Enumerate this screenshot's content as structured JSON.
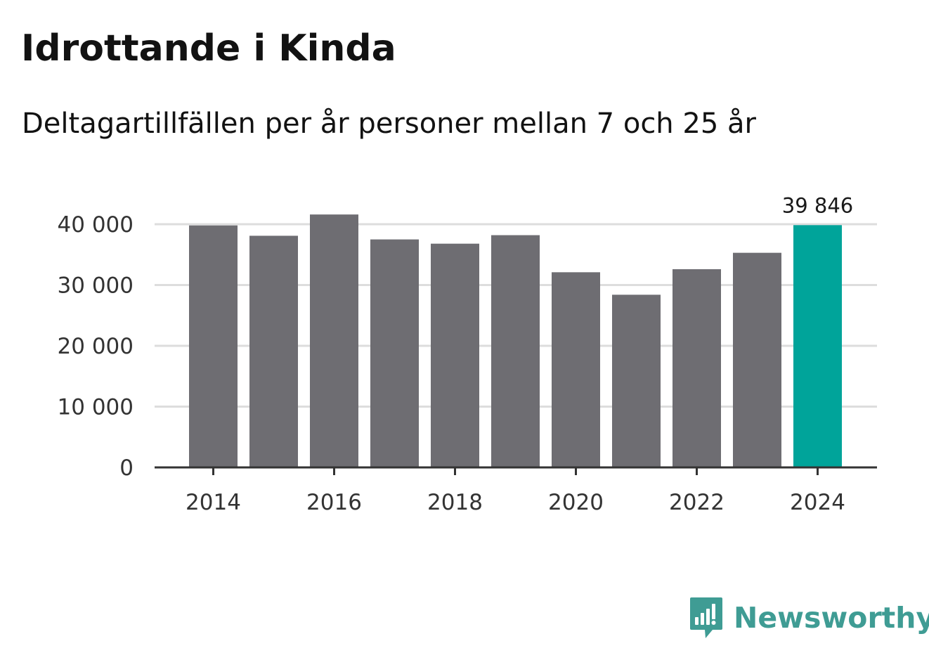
{
  "header": {
    "title": "Idrottande i Kinda",
    "subtitle": "Deltagartillfällen per år personer mellan 7 och 25 år"
  },
  "brand": {
    "name": "Newsworthy",
    "color": "#3f9c94"
  },
  "colors": {
    "bar": "#6e6d72",
    "highlight": "#00a49a",
    "grid": "#dddddd",
    "axis": "#333333"
  },
  "chart_data": {
    "type": "bar",
    "title": "Idrottande i Kinda",
    "subtitle": "Deltagartillfällen per år personer mellan 7 och 25 år",
    "xlabel": "",
    "ylabel": "",
    "categories": [
      "2014",
      "2015",
      "2016",
      "2017",
      "2018",
      "2019",
      "2020",
      "2021",
      "2022",
      "2023",
      "2024"
    ],
    "values": [
      39800,
      38100,
      41600,
      37500,
      36800,
      38200,
      32100,
      28400,
      32600,
      35300,
      39846
    ],
    "highlight_index": 10,
    "annotation": {
      "index": 10,
      "text": "39 846"
    },
    "ylim": [
      0,
      40000
    ],
    "yticks": [
      0,
      10000,
      20000,
      30000,
      40000
    ],
    "ytick_labels": [
      "0",
      "10 000",
      "20 000",
      "30 000",
      "40 000"
    ],
    "xtick_labels": [
      "2014",
      "2016",
      "2018",
      "2020",
      "2022",
      "2024"
    ],
    "grid": true,
    "legend": "none"
  }
}
